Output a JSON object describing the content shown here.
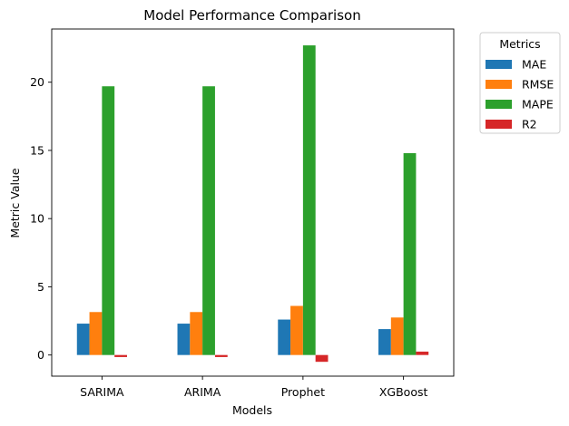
{
  "chart_data": {
    "type": "bar",
    "title": "Model Performance Comparison",
    "xlabel": "Models",
    "ylabel": "Metric Value",
    "categories": [
      "SARIMA",
      "ARIMA",
      "Prophet",
      "XGBoost"
    ],
    "series": [
      {
        "name": "MAE",
        "color": "#1f77b4",
        "values": [
          2.3,
          2.3,
          2.6,
          1.9
        ]
      },
      {
        "name": "RMSE",
        "color": "#ff7f0e",
        "values": [
          3.15,
          3.15,
          3.6,
          2.75
        ]
      },
      {
        "name": "MAPE",
        "color": "#2ca02c",
        "values": [
          19.7,
          19.7,
          22.7,
          14.8
        ]
      },
      {
        "name": "R2",
        "color": "#d62728",
        "values": [
          -0.15,
          -0.15,
          -0.5,
          0.25
        ]
      }
    ],
    "ylim": [
      -1.55,
      23.9
    ],
    "yticks": [
      0,
      5,
      10,
      15,
      20
    ],
    "grid": false,
    "legend": {
      "title": "Metrics",
      "placement": "outside-top-right"
    }
  }
}
